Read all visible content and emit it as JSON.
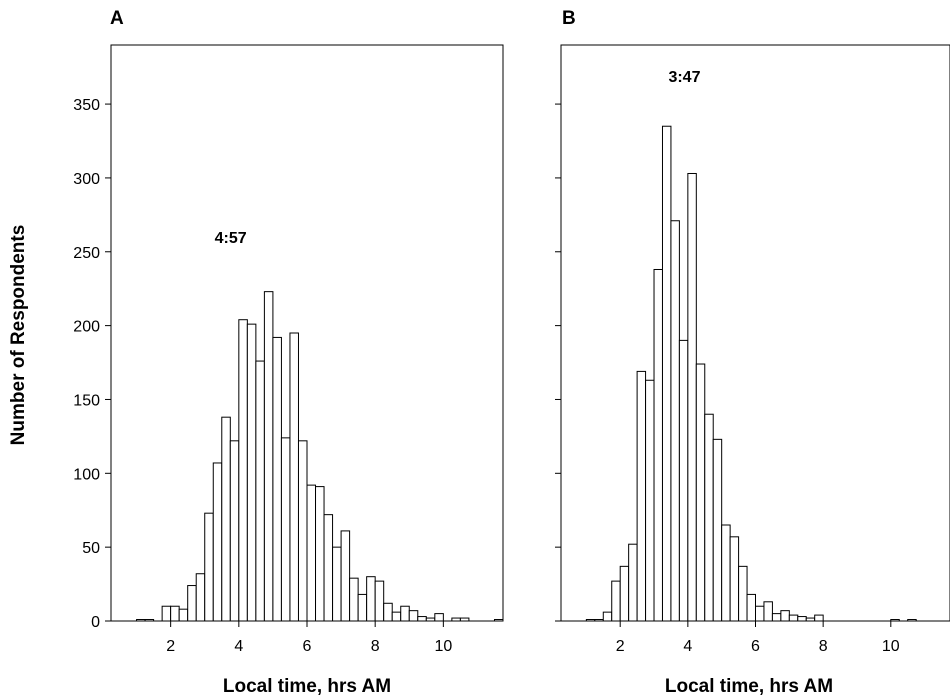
{
  "ylabel": "Number of Respondents",
  "chart_data": [
    {
      "type": "bar",
      "panel_label": "A",
      "annotation": "4:57",
      "xlabel": "Local time, hrs AM",
      "ylabel": "Number of Respondents",
      "xlim": [
        0.25,
        11.75
      ],
      "ylim": [
        0,
        390
      ],
      "xticks": [
        "2",
        "4",
        "6",
        "8",
        "10"
      ],
      "yticks": [
        "0",
        "50",
        "100",
        "150",
        "200",
        "250",
        "300",
        "350"
      ],
      "bin_width": 0.25,
      "bin_start": 1.0,
      "values": [
        1,
        1,
        0,
        10,
        10,
        8,
        24,
        32,
        73,
        107,
        138,
        122,
        204,
        201,
        176,
        223,
        192,
        124,
        195,
        122,
        92,
        91,
        72,
        50,
        61,
        29,
        18,
        30,
        27,
        12,
        6,
        10,
        7,
        3,
        2,
        5,
        0,
        2,
        2,
        0,
        0,
        0,
        1
      ]
    },
    {
      "type": "bar",
      "panel_label": "B",
      "annotation": "3:47",
      "xlabel": "Local time, hrs AM",
      "xlim": [
        0.25,
        11.75
      ],
      "ylim": [
        0,
        390
      ],
      "xticks": [
        "2",
        "4",
        "6",
        "8",
        "10"
      ],
      "yticks": [
        "0",
        "50",
        "100",
        "150",
        "200",
        "250",
        "300",
        "350"
      ],
      "bin_width": 0.25,
      "bin_start": 1.0,
      "values": [
        1,
        1,
        6,
        27,
        37,
        52,
        169,
        163,
        238,
        335,
        271,
        190,
        303,
        174,
        140,
        123,
        65,
        57,
        37,
        18,
        10,
        13,
        5,
        7,
        4,
        3,
        2,
        4,
        0,
        0,
        0,
        0,
        0,
        0,
        0,
        0,
        1,
        0,
        1
      ]
    }
  ]
}
